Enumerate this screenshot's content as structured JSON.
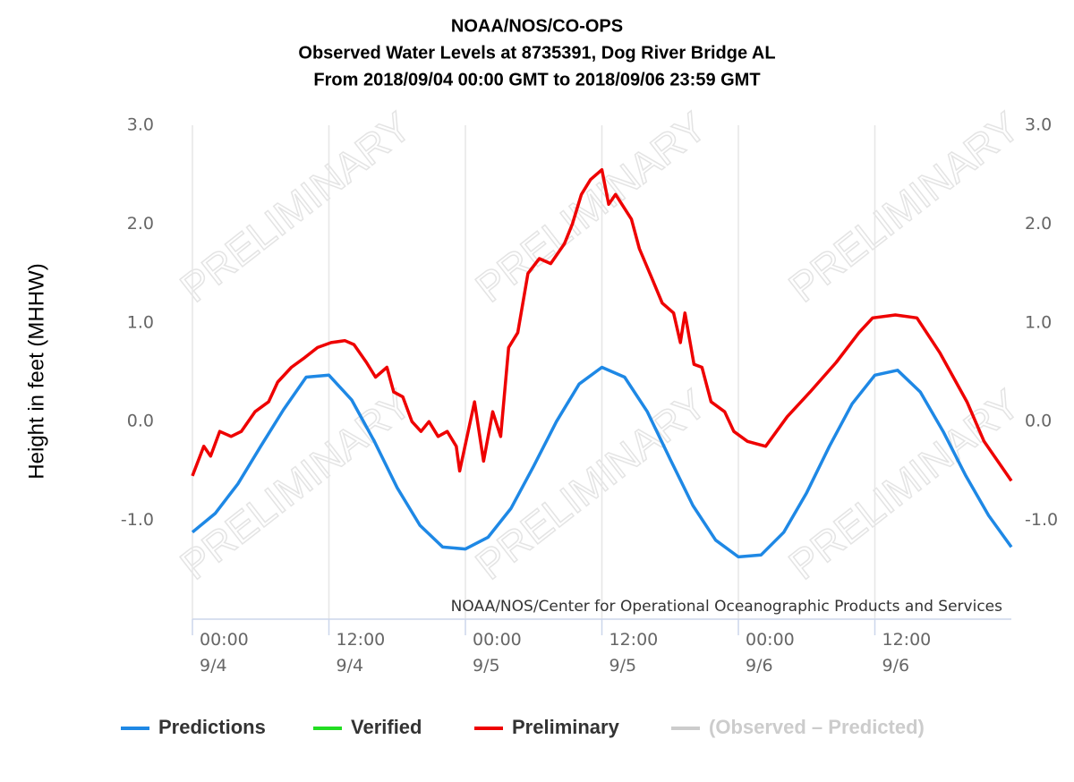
{
  "chart_data": {
    "type": "line",
    "title": [
      "NOAA/NOS/CO-OPS",
      "Observed Water Levels at 8735391, Dog River Bridge AL",
      "From 2018/09/04 00:00 GMT to 2018/09/06 23:59 GMT"
    ],
    "y_label": "Height in feet (MHHW)",
    "credit": "NOAA/NOS/Center for Operational Oceanographic Products and Services",
    "watermark": "PRELIMINARY",
    "xlim": [
      0,
      72
    ],
    "xticks": [
      {
        "value": 0,
        "label": "00:00\n9/4"
      },
      {
        "value": 12,
        "label": "12:00\n9/4"
      },
      {
        "value": 24,
        "label": "00:00\n9/5"
      },
      {
        "value": 36,
        "label": "12:00\n9/5"
      },
      {
        "value": 48,
        "label": "00:00\n9/6"
      },
      {
        "value": 60,
        "label": "12:00\n9/6"
      }
    ],
    "ylim": [
      -2,
      3
    ],
    "yticks": [
      {
        "value": -1,
        "label": "-1.0"
      },
      {
        "value": 0,
        "label": "0.0"
      },
      {
        "value": 1,
        "label": "1.0"
      },
      {
        "value": 2,
        "label": "2.0"
      },
      {
        "value": 3,
        "label": "3.0"
      }
    ],
    "y2lim": [
      -2,
      3
    ],
    "y2ticks": [
      {
        "value": -1,
        "label": "-1.0"
      },
      {
        "value": 0,
        "label": "0.0"
      },
      {
        "value": 1,
        "label": "1.0"
      },
      {
        "value": 2,
        "label": "2.0"
      },
      {
        "value": 3,
        "label": "3.0"
      }
    ],
    "grid": "x",
    "legend": "bottom",
    "series": [
      {
        "name": "Predictions",
        "color": "#1e88e5",
        "x": [
          0,
          2,
          4,
          6,
          8,
          10,
          12,
          14,
          16,
          18,
          20,
          22,
          24,
          26,
          28,
          30,
          32,
          34,
          36,
          38,
          40,
          42,
          44,
          46,
          48,
          50,
          52,
          54,
          56,
          58,
          60,
          62,
          64,
          66,
          68,
          70,
          72
        ],
        "values": [
          -1.12,
          -0.93,
          -0.63,
          -0.25,
          0.12,
          0.45,
          0.47,
          0.22,
          -0.2,
          -0.67,
          -1.05,
          -1.27,
          -1.29,
          -1.17,
          -0.88,
          -0.45,
          0.0,
          0.38,
          0.55,
          0.45,
          0.1,
          -0.38,
          -0.85,
          -1.2,
          -1.37,
          -1.35,
          -1.12,
          -0.72,
          -0.25,
          0.18,
          0.47,
          0.52,
          0.3,
          -0.1,
          -0.55,
          -0.95,
          -1.27
        ]
      },
      {
        "name": "Verified",
        "color": "#22dd22",
        "x": [],
        "values": []
      },
      {
        "name": "Preliminary",
        "color": "#ee0000",
        "x": [
          0,
          1.0,
          1.6,
          2.4,
          3.4,
          4.3,
          5.5,
          6.7,
          7.5,
          8.7,
          9.9,
          11.0,
          12.2,
          13.4,
          14.2,
          15.3,
          16.1,
          17.1,
          17.7,
          18.5,
          19.3,
          20.1,
          20.8,
          21.6,
          22.4,
          23.2,
          23.5,
          24.8,
          25.6,
          26.4,
          27.1,
          27.8,
          28.6,
          29.5,
          30.5,
          31.5,
          32.7,
          33.4,
          34.2,
          35.0,
          36.0,
          36.6,
          37.2,
          38.6,
          39.3,
          40.4,
          41.3,
          42.3,
          42.9,
          43.3,
          44.1,
          44.8,
          45.6,
          46.8,
          47.6,
          48.8,
          50.4,
          52.3,
          54.3,
          56.6,
          58.6,
          59.8,
          61.8,
          63.7,
          65.7,
          68.1,
          69.6,
          70.8,
          72.0
        ],
        "values": [
          -0.55,
          -0.25,
          -0.35,
          -0.1,
          -0.15,
          -0.1,
          0.1,
          0.2,
          0.4,
          0.55,
          0.65,
          0.75,
          0.8,
          0.82,
          0.78,
          0.6,
          0.45,
          0.55,
          0.3,
          0.25,
          0.0,
          -0.1,
          0.0,
          -0.15,
          -0.1,
          -0.25,
          -0.5,
          0.2,
          -0.4,
          0.1,
          -0.15,
          0.75,
          0.9,
          1.5,
          1.65,
          1.6,
          1.8,
          2.0,
          2.3,
          2.45,
          2.55,
          2.2,
          2.3,
          2.05,
          1.75,
          1.45,
          1.2,
          1.1,
          0.8,
          1.1,
          0.58,
          0.55,
          0.2,
          0.1,
          -0.1,
          -0.2,
          -0.25,
          0.05,
          0.3,
          0.6,
          0.9,
          1.05,
          1.08,
          1.05,
          0.7,
          0.2,
          -0.2,
          -0.4,
          -0.6
        ]
      },
      {
        "name": "(Observed – Predicted)",
        "color": "#cccccc",
        "hidden": true,
        "x": [],
        "values": []
      }
    ]
  }
}
